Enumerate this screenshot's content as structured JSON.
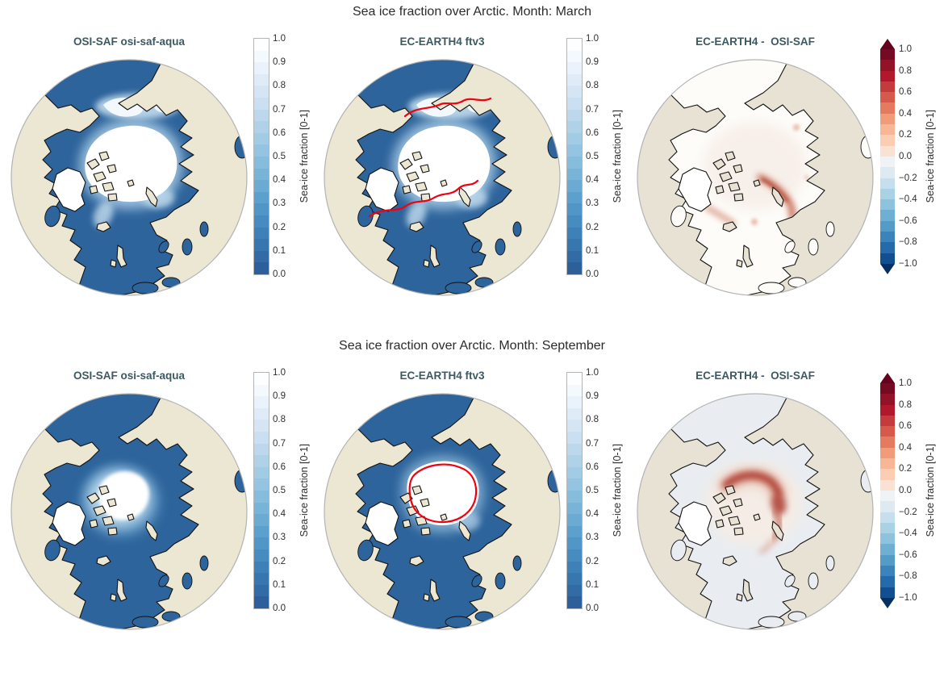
{
  "figure": {
    "rows": [
      {
        "title": "Sea ice fraction over Arctic. Month: March",
        "panels": [
          {
            "title": "OSI-SAF osi-saf-aqua",
            "colorbar": "sequential"
          },
          {
            "title": "EC-EARTH4 ftv3",
            "colorbar": "sequential"
          },
          {
            "title": "EC-EARTH4 -  OSI-SAF",
            "colorbar": "diverging"
          }
        ]
      },
      {
        "title": "Sea ice fraction over Arctic. Month: September",
        "panels": [
          {
            "title": "OSI-SAF osi-saf-aqua",
            "colorbar": "sequential"
          },
          {
            "title": "EC-EARTH4 ftv3",
            "colorbar": "sequential"
          },
          {
            "title": "EC-EARTH4 -  OSI-SAF",
            "colorbar": "diverging"
          }
        ]
      }
    ]
  },
  "colorbars": {
    "sequential": {
      "label": "Sea-ice fraction [0-1]",
      "ticks": [
        "1.0",
        "0.9",
        "0.8",
        "0.7",
        "0.6",
        "0.5",
        "0.4",
        "0.3",
        "0.2",
        "0.1",
        "0.0"
      ],
      "extend": "none",
      "colors": [
        "#fdfeff",
        "#f4f9fe",
        "#eaf2fb",
        "#dfecf7",
        "#d5e5f4",
        "#cadff1",
        "#bdd8ec",
        "#b0d2e9",
        "#a2cbe5",
        "#94c4e1",
        "#86bcdc",
        "#78b3d8",
        "#6aaad3",
        "#5ca0cd",
        "#5096c7",
        "#468cc0",
        "#3d81b8",
        "#3776af",
        "#326ba6",
        "#2d609b"
      ]
    },
    "diverging": {
      "label": "Sea-ice fraction [0-1]",
      "ticks": [
        "1.0",
        "0.8",
        "0.6",
        "0.4",
        "0.2",
        "0.0",
        "−0.2",
        "−0.4",
        "−0.6",
        "−0.8",
        "−1.0"
      ],
      "extend": "both",
      "tip_top": "#67001f",
      "tip_bottom": "#053061",
      "colors": [
        "#740b22",
        "#921227",
        "#b2182b",
        "#c53a3d",
        "#d65a4b",
        "#e37b60",
        "#f09b79",
        "#f7b695",
        "#fbceb4",
        "#fae2d2",
        "#eff3f5",
        "#ddeaf2",
        "#c6dfee",
        "#aad2e5",
        "#8dc3dc",
        "#6fb0d2",
        "#539cc7",
        "#3a84bb",
        "#256bab",
        "#124f90"
      ]
    }
  },
  "map_colors": {
    "ocean": "#2d649b",
    "land": "#ece7d2",
    "diff_ocean_march": "#fdfcf9",
    "diff_ocean_september": "#e9edf1",
    "diff_land": "#e7e2d4",
    "sea_ice": "#ffffff",
    "ice_edge_contour": "#f30010",
    "coastline": "#111111",
    "globe_outline": "#b3b3b3",
    "diff_positive": "#a93226",
    "diff_negative": "#2166ac"
  }
}
